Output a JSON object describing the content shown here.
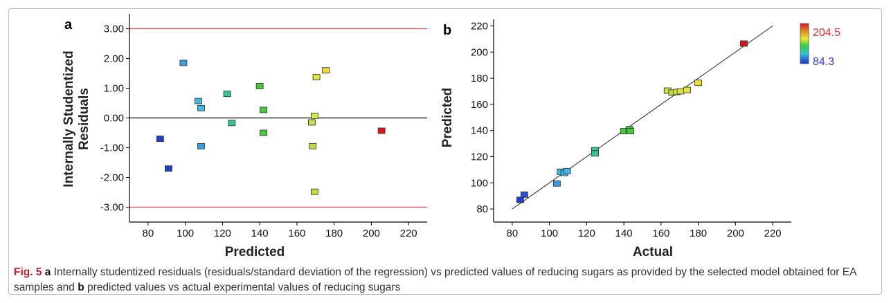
{
  "figure": {
    "caption_label": "Fig. 5",
    "caption_a_letter": "a",
    "caption_part1": " Internally studentized residuals (residuals/standard deviation of the regression) vs predicted values of reducing sugars as provided by the selected model obtained for EA samples and ",
    "caption_b_letter": "b",
    "caption_part2": " predicted values vs actual experimental values of reducing sugars"
  },
  "colorbar": {
    "max_label": "204.5",
    "min_label": "84.3",
    "max_color": "#e8312f",
    "min_color": "#3b3bd9"
  },
  "chart_data": [
    {
      "type": "scatter",
      "panel_label": "a",
      "xlabel": "Predicted",
      "ylabel_line1": "Internally Studentized",
      "ylabel_line2": "Residuals",
      "xlim": [
        70,
        230
      ],
      "ylim": [
        -3.5,
        3.5
      ],
      "x_ticks": [
        "80",
        "100",
        "120",
        "140",
        "160",
        "180",
        "200",
        "220"
      ],
      "y_ticks": [
        "-3.00",
        "-2.00",
        "-1.00",
        "0.00",
        "1.00",
        "2.00",
        "3.00"
      ],
      "reference_lines": [
        {
          "y": 3.0,
          "color": "#e0474c"
        },
        {
          "y": -3.0,
          "color": "#e0474c"
        },
        {
          "y": 0.0,
          "color": "#000000"
        }
      ],
      "points": [
        {
          "x": 86.5,
          "y": -0.7,
          "color": "#1f3fcf"
        },
        {
          "x": 91.0,
          "y": -1.7,
          "color": "#1f3fcf"
        },
        {
          "x": 99.0,
          "y": 1.85,
          "color": "#3a9de0"
        },
        {
          "x": 107.0,
          "y": 0.57,
          "color": "#43b6e8"
        },
        {
          "x": 108.5,
          "y": 0.33,
          "color": "#43b6e8"
        },
        {
          "x": 108.5,
          "y": -0.95,
          "color": "#3a9de0"
        },
        {
          "x": 122.5,
          "y": 0.81,
          "color": "#39c39c"
        },
        {
          "x": 125.0,
          "y": -0.17,
          "color": "#39c39c"
        },
        {
          "x": 140.0,
          "y": 1.07,
          "color": "#47c93c"
        },
        {
          "x": 142.0,
          "y": 0.27,
          "color": "#47c93c"
        },
        {
          "x": 142.0,
          "y": -0.5,
          "color": "#47c93c"
        },
        {
          "x": 168.0,
          "y": -0.15,
          "color": "#c8e34a"
        },
        {
          "x": 168.5,
          "y": -0.95,
          "color": "#b8df3c"
        },
        {
          "x": 169.5,
          "y": 0.07,
          "color": "#d6e644"
        },
        {
          "x": 169.5,
          "y": -2.48,
          "color": "#b8df3c"
        },
        {
          "x": 170.5,
          "y": 1.37,
          "color": "#e6e43a"
        },
        {
          "x": 175.5,
          "y": 1.6,
          "color": "#eedb34"
        },
        {
          "x": 205.5,
          "y": -0.43,
          "color": "#d9161c"
        }
      ]
    },
    {
      "type": "scatter",
      "panel_label": "b",
      "xlabel": "Actual",
      "ylabel": "Predicted",
      "xlim": [
        70,
        230
      ],
      "ylim": [
        70,
        225
      ],
      "x_ticks": [
        "80",
        "100",
        "120",
        "140",
        "160",
        "180",
        "200",
        "220"
      ],
      "y_ticks": [
        "80",
        "100",
        "120",
        "140",
        "160",
        "180",
        "200",
        "220"
      ],
      "fit_line": {
        "x": [
          80,
          220
        ],
        "y": [
          80,
          220
        ]
      },
      "points": [
        {
          "x": 84.3,
          "y": 87.0,
          "color": "#1f3fcf"
        },
        {
          "x": 86.5,
          "y": 91.0,
          "color": "#2b53d8"
        },
        {
          "x": 104.0,
          "y": 99.5,
          "color": "#3a9de0"
        },
        {
          "x": 106.0,
          "y": 108.5,
          "color": "#43b6e8"
        },
        {
          "x": 108.0,
          "y": 107.5,
          "color": "#43b6e8"
        },
        {
          "x": 109.5,
          "y": 109.0,
          "color": "#43b6e8"
        },
        {
          "x": 124.5,
          "y": 125.0,
          "color": "#39c39c"
        },
        {
          "x": 124.5,
          "y": 122.5,
          "color": "#39c39c"
        },
        {
          "x": 140.0,
          "y": 139.5,
          "color": "#47c93c"
        },
        {
          "x": 143.0,
          "y": 141.0,
          "color": "#47c93c"
        },
        {
          "x": 143.5,
          "y": 139.5,
          "color": "#47c93c"
        },
        {
          "x": 163.5,
          "y": 170.5,
          "color": "#c8e34a"
        },
        {
          "x": 166.0,
          "y": 169.0,
          "color": "#b8df3c"
        },
        {
          "x": 168.5,
          "y": 169.5,
          "color": "#d6e644"
        },
        {
          "x": 170.5,
          "y": 170.0,
          "color": "#d6e644"
        },
        {
          "x": 174.0,
          "y": 171.0,
          "color": "#e6e43a"
        },
        {
          "x": 180.0,
          "y": 176.5,
          "color": "#eedb34"
        },
        {
          "x": 204.5,
          "y": 206.5,
          "color": "#d9161c"
        }
      ]
    }
  ]
}
